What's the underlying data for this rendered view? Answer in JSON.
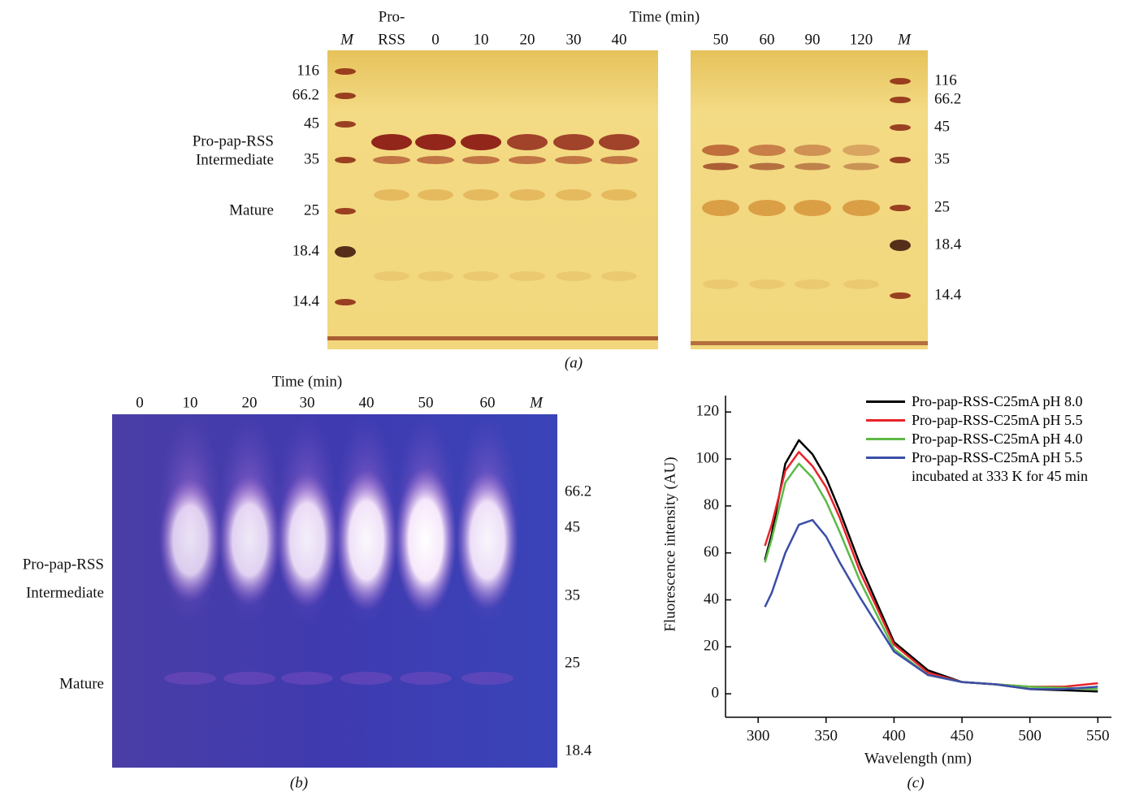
{
  "panel_a": {
    "caption": "(a)",
    "axis_title": "Time (min)",
    "pro_rss_header": [
      "Pro-",
      "RSS"
    ],
    "lanes": [
      "M",
      "0",
      "10",
      "20",
      "30",
      "40",
      "50",
      "60",
      "90",
      "120",
      "M"
    ],
    "markers_left": [
      "116",
      "66.2",
      "45",
      "35",
      "25",
      "18.4",
      "14.4"
    ],
    "markers_right": [
      "116",
      "66.2",
      "45",
      "35",
      "25",
      "18.4",
      "14.4"
    ],
    "band_labels": [
      "Pro-pap-RSS",
      "Intermediate",
      "Mature"
    ]
  },
  "panel_b": {
    "caption": "(b)",
    "axis_title": "Time (min)",
    "lanes": [
      "0",
      "10",
      "20",
      "30",
      "40",
      "50",
      "60",
      "M"
    ],
    "markers": [
      "66.2",
      "45",
      "35",
      "25",
      "18.4"
    ],
    "band_labels": [
      "Pro-pap-RSS",
      "Intermediate",
      "Mature"
    ]
  },
  "chart_data": {
    "type": "line",
    "caption": "(c)",
    "x_label": "Wavelength (nm)",
    "y_label": "Fluorescence intensity (AU)",
    "x": [
      305,
      310,
      320,
      330,
      340,
      350,
      360,
      375,
      400,
      425,
      450,
      475,
      500,
      525,
      550
    ],
    "series": [
      {
        "name": "Pro-pap-RSS-C25mA pH 8.0",
        "color": "#000000",
        "values": [
          57,
          68,
          98,
          108,
          102,
          92,
          78,
          55,
          22,
          10,
          5,
          4,
          2,
          1.5,
          1
        ]
      },
      {
        "name": "Pro-pap-RSS-C25mA pH 5.5",
        "color": "#e8242a",
        "values": [
          63,
          72,
          95,
          103,
          97,
          88,
          75,
          52,
          21,
          9,
          5,
          4,
          3,
          3,
          4.5
        ]
      },
      {
        "name": "Pro-pap-RSS-C25mA pH 4.0",
        "color": "#5cb946",
        "values": [
          56,
          66,
          90,
          98,
          92,
          82,
          69,
          48,
          19,
          8,
          5,
          4,
          3,
          2.5,
          2
        ]
      },
      {
        "name": "Pro-pap-RSS-C25mA pH 5.5 incubated at 333 K for 45 min",
        "color": "#3b4ea8",
        "values": [
          37,
          43,
          60,
          72,
          74,
          67,
          56,
          41,
          18,
          8,
          5,
          4,
          2,
          2,
          3
        ]
      }
    ],
    "xlim": [
      276,
      560
    ],
    "ylim": [
      -10,
      127
    ],
    "xticks": [
      300,
      350,
      400,
      450,
      500,
      550
    ],
    "yticks": [
      0,
      20,
      40,
      60,
      80,
      100,
      120
    ],
    "legend": "upper right",
    "grid": false
  }
}
